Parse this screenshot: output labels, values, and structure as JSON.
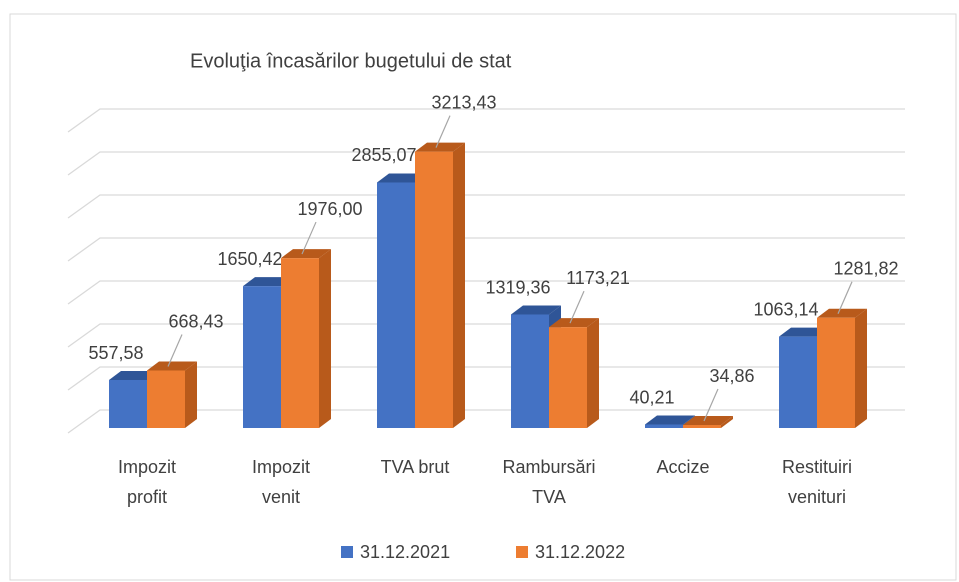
{
  "chart_data": {
    "type": "bar3d",
    "title": "Evoluţia încasărilor bugetului de stat",
    "categories": [
      "Impozit profit",
      "Impozit venit",
      "TVA brut",
      "Rambursări TVA",
      "Accize",
      "Restituiri venituri"
    ],
    "series": [
      {
        "name": "31.12.2021",
        "color": "#4472c4",
        "side": "#2f5597",
        "values": [
          557.58,
          1650.42,
          2855.07,
          1319.36,
          40.21,
          1063.14
        ],
        "value_labels": [
          "557,58",
          "1650,42",
          "2855,07",
          "1319,36",
          "40,21",
          "1063,14"
        ]
      },
      {
        "name": "31.12.2022",
        "color": "#ed7d31",
        "side": "#b85a1b",
        "values": [
          668.43,
          1976.0,
          3213.43,
          1173.21,
          34.86,
          1281.82
        ],
        "value_labels": [
          "668,43",
          "1976,00",
          "3213,43",
          "1173,21",
          "34,86",
          "1281,82"
        ]
      }
    ],
    "ylim": [
      0,
      3500
    ],
    "yticks": [
      0,
      500,
      1000,
      1500,
      2000,
      2500,
      3000,
      3500
    ],
    "grid": true
  }
}
